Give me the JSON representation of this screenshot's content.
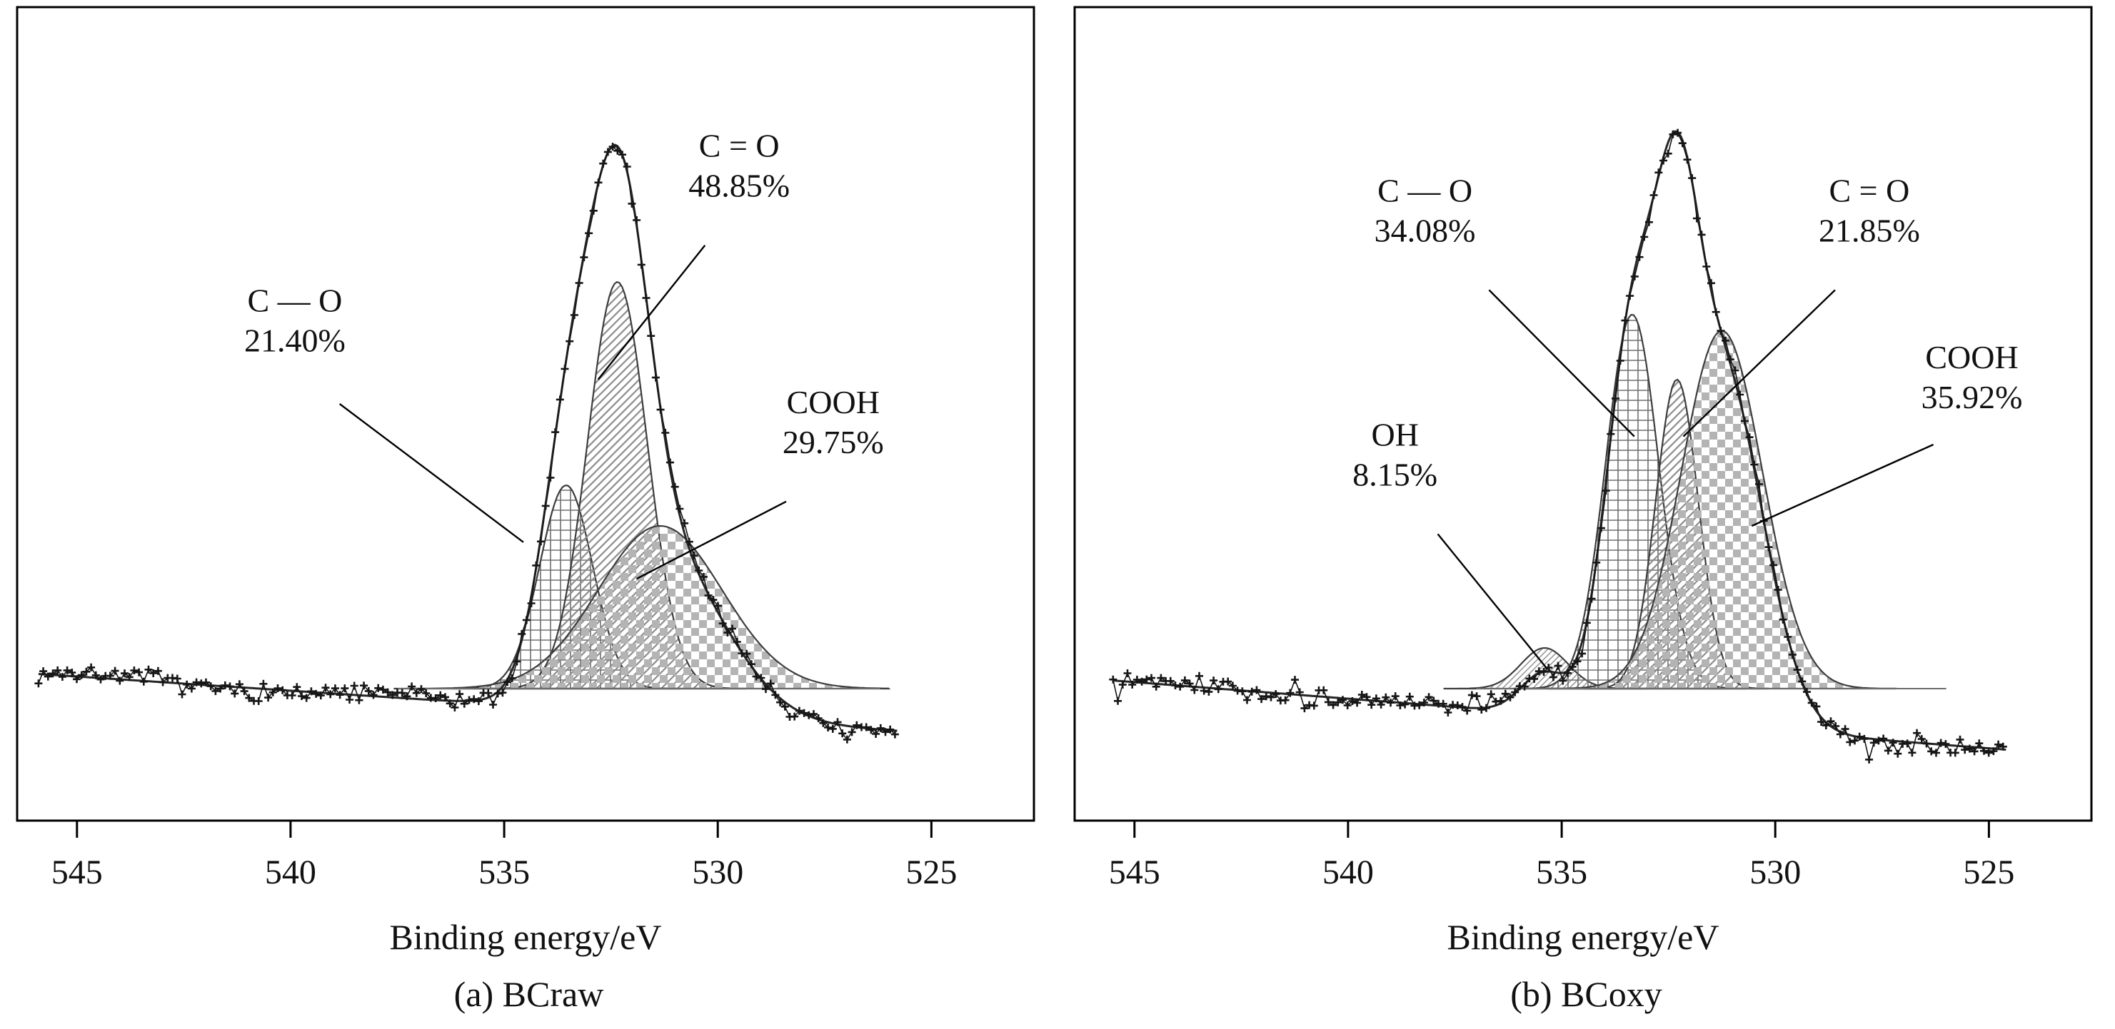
{
  "page": {
    "background": "#ffffff"
  },
  "colors": {
    "ink": "#111111",
    "curve": "#262626",
    "marker": "#161616",
    "component_outline": "#3d3d3d",
    "baseline": "#6b6b6b",
    "grid_pattern": "#6f6f6f",
    "diag_pattern": "#8c8c8c",
    "checker_pattern": "#b4b4b4",
    "fine_diag_pattern": "#9a9a9a"
  },
  "chart_data": {
    "type": "line",
    "description": "XPS O 1s spectra with fitted Gaussian components (measured points, sum envelope, hatched component peaks)",
    "xlabel": "Binding energy/eV",
    "x_ticks": [
      "545",
      "540",
      "535",
      "530",
      "525"
    ],
    "x_axis_reversed": true,
    "grid": false,
    "legend": "annotated labels with leader lines",
    "panels": [
      {
        "caption": "(a) BCraw",
        "x_range_ev": [
          546.4,
          522.6
        ],
        "data_span_ev": [
          545.9,
          525.8
        ],
        "baseline_tilt": {
          "left": 0.018,
          "right": -0.052
        },
        "baseline_line_span_ev": [
          537.5,
          526.2
        ],
        "noise_seed": 7,
        "noise_amp": 0.013,
        "components": [
          {
            "key": "c-o",
            "label_line1": "C — O",
            "label_line2": "21.40%",
            "percent": 21.4,
            "center_ev": 533.55,
            "sigma_ev": 0.62,
            "amplitude": 0.25,
            "pattern": "grid",
            "annotation": {
              "text_ev": 539.9,
              "text_val": 0.455,
              "leader": [
                538.85,
                0.35,
                534.55,
                0.18
              ]
            }
          },
          {
            "key": "c2o",
            "label_line1": "C = O",
            "label_line2": "48.85%",
            "percent": 48.85,
            "center_ev": 532.35,
            "sigma_ev": 0.7,
            "amplitude": 0.5,
            "pattern": "diag",
            "annotation": {
              "text_ev": 529.5,
              "text_val": 0.645,
              "leader": [
                530.3,
                0.545,
                532.8,
                0.38
              ]
            }
          },
          {
            "key": "cooh",
            "label_line1": "COOH",
            "label_line2": "29.75%",
            "percent": 29.75,
            "center_ev": 531.35,
            "sigma_ev": 1.45,
            "amplitude": 0.2,
            "pattern": "checker",
            "annotation": {
              "text_ev": 527.3,
              "text_val": 0.33,
              "leader": [
                528.4,
                0.23,
                531.9,
                0.135
              ]
            }
          }
        ]
      },
      {
        "caption": "(b) BCoxy",
        "x_range_ev": [
          546.4,
          522.6
        ],
        "data_span_ev": [
          545.5,
          524.6
        ],
        "baseline_tilt": {
          "left": 0.01,
          "right": -0.075
        },
        "baseline_line_span_ev": [
          537.0,
          526.0
        ],
        "noise_seed": 13,
        "noise_amp": 0.013,
        "components": [
          {
            "key": "oh",
            "label_line1": "OH",
            "label_line2": "8.15%",
            "percent": 8.15,
            "center_ev": 535.4,
            "sigma_ev": 0.55,
            "amplitude": 0.05,
            "pattern": "finediag",
            "annotation": {
              "text_ev": 538.9,
              "text_val": 0.29,
              "leader": [
                537.9,
                0.19,
                535.35,
                0.025
              ]
            }
          },
          {
            "key": "c-o",
            "label_line1": "C — O",
            "label_line2": "34.08%",
            "percent": 34.08,
            "center_ev": 533.35,
            "sigma_ev": 0.62,
            "amplitude": 0.46,
            "pattern": "grid",
            "annotation": {
              "text_ev": 538.2,
              "text_val": 0.59,
              "leader": [
                536.7,
                0.49,
                533.3,
                0.31
              ]
            }
          },
          {
            "key": "c2o",
            "label_line1": "C = O",
            "label_line2": "21.85%",
            "percent": 21.85,
            "center_ev": 532.3,
            "sigma_ev": 0.5,
            "amplitude": 0.38,
            "pattern": "diag",
            "annotation": {
              "text_ev": 527.8,
              "text_val": 0.59,
              "leader": [
                528.6,
                0.49,
                532.15,
                0.31
              ]
            }
          },
          {
            "key": "cooh",
            "label_line1": "COOH",
            "label_line2": "35.92%",
            "percent": 35.92,
            "center_ev": 531.25,
            "sigma_ev": 0.95,
            "amplitude": 0.44,
            "pattern": "checker",
            "annotation": {
              "text_ev": 525.4,
              "text_val": 0.385,
              "leader": [
                526.3,
                0.3,
                530.55,
                0.2
              ]
            }
          }
        ]
      }
    ]
  }
}
